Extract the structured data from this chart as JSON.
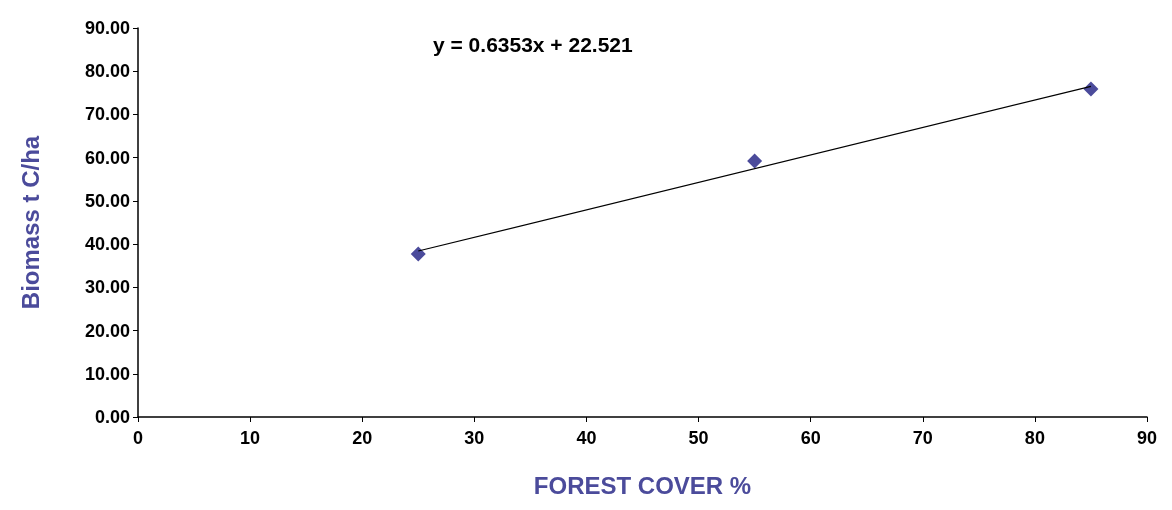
{
  "chart_data": {
    "type": "scatter",
    "xlabel": "FOREST COVER %",
    "ylabel": "Biomass t C/ha",
    "annotations": [
      "y = 0.6353x + 22.521"
    ],
    "series": [
      {
        "type": "scatter",
        "color": "#4b4b9b",
        "x": [
          25,
          55,
          85
        ],
        "values": [
          37.7,
          59.2,
          75.9
        ],
        "marker": "diamond"
      },
      {
        "type": "line",
        "color": "#000000",
        "x": [
          25,
          85
        ],
        "values": [
          38.4,
          76.5
        ],
        "marker": "none"
      }
    ],
    "xlim": [
      0,
      90
    ],
    "xticks": [
      0,
      10,
      20,
      30,
      40,
      50,
      60,
      70,
      80,
      90
    ],
    "ylim": [
      0,
      90
    ],
    "yticks": [
      {
        "value": 0,
        "label": "0.00"
      },
      {
        "value": 10,
        "label": "10.00"
      },
      {
        "value": 20,
        "label": "20.00"
      },
      {
        "value": 30,
        "label": "30.00"
      },
      {
        "value": 40,
        "label": "40.00"
      },
      {
        "value": 50,
        "label": "50.00"
      },
      {
        "value": 60,
        "label": "60.00"
      },
      {
        "value": 70,
        "label": "70.00"
      },
      {
        "value": 80,
        "label": "80.00"
      },
      {
        "value": 90,
        "label": "90.00"
      }
    ],
    "grid": false
  }
}
